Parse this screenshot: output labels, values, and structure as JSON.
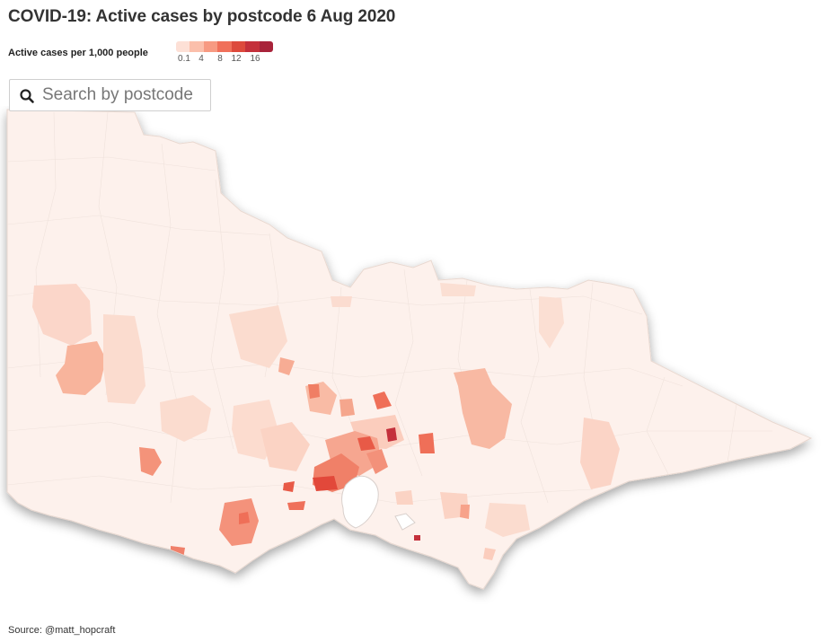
{
  "title": "COVID-19: Active cases by postcode 6 Aug 2020",
  "legend": {
    "label": "Active cases per 1,000 people",
    "ticks": [
      "0.1",
      "4",
      "8",
      "12",
      "16"
    ],
    "colors": [
      "#fde0d6",
      "#fbbfab",
      "#f79a82",
      "#f0705a",
      "#dd4a3c",
      "#c4303b",
      "#a8233a"
    ]
  },
  "search": {
    "placeholder": "Search by postcode",
    "icon": "search-icon"
  },
  "map": {
    "region": "Victoria",
    "base_color": "#fdf1ec",
    "border_color": "#e6d7d0"
  },
  "source": "Source: @matt_hopcraft"
}
